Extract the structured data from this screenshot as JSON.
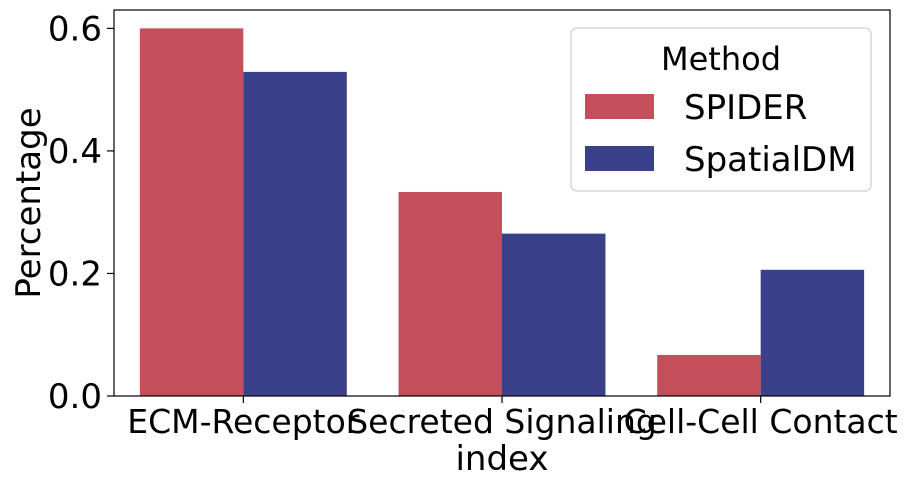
{
  "chart_data": {
    "type": "bar",
    "categories": [
      "ECM-Receptor",
      "Secreted Signaling",
      "Cell-Cell Contact"
    ],
    "series": [
      {
        "name": "SPIDER",
        "values": [
          0.6,
          0.333,
          0.067
        ],
        "color": "#c44e5a"
      },
      {
        "name": "SpatialDM",
        "values": [
          0.529,
          0.265,
          0.206
        ],
        "color": "#3b408a"
      }
    ],
    "xlabel": "index",
    "ylabel": "Percentage",
    "ylim": [
      0,
      0.63
    ],
    "yticks": [
      0.0,
      0.2,
      0.4,
      0.6
    ],
    "ytick_labels": [
      "0.0",
      "0.2",
      "0.4",
      "0.6"
    ],
    "legend": {
      "title": "Method",
      "placement": "top-right"
    },
    "grid": false
  }
}
